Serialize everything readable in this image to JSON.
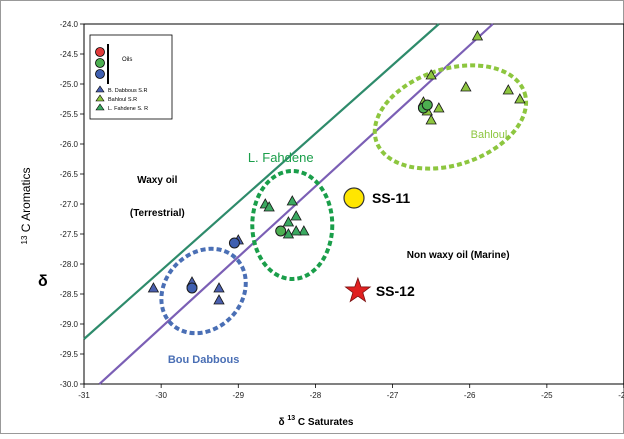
{
  "chart_data": {
    "type": "scatter",
    "xlabel": {
      "prefix": "δ",
      "sup": "13",
      "text": "C Saturates"
    },
    "ylabel": {
      "prefix": "δ",
      "sup": "13",
      "text": "C Aromatics"
    },
    "xlim": [
      -31,
      -24
    ],
    "ylim": [
      -30,
      -24
    ],
    "x_ticks": [
      -31,
      -30,
      -29,
      -28,
      -27,
      -26,
      -25,
      -24
    ],
    "x_tick_labels": [
      "-31",
      "-30",
      "-29",
      "-28",
      "-27",
      "-26",
      "-25",
      "-24"
    ],
    "y_ticks": [
      -24.0,
      -24.5,
      -25.0,
      -25.5,
      -26.0,
      -26.5,
      -27.0,
      -27.5,
      -28.0,
      -28.5,
      -29.0,
      -29.5,
      -30.0
    ],
    "y_tick_labels": [
      "-24.0",
      "-24.5",
      "-25.0",
      "-25.5",
      "-26.0",
      "-26.5",
      "-27.0",
      "-27.5",
      "-28.0",
      "-28.5",
      "-29.0",
      "-29.5",
      "-30.0"
    ],
    "grid": false,
    "legend": {
      "placement": "top-left",
      "oils_label": "Oils",
      "entries": [
        "B. Dabbous S.R",
        "Bahloul S.R",
        "L. Fahdene S. R"
      ]
    },
    "colors": {
      "dabbous": "#4a5fae",
      "bahloul": "#8dc63f",
      "fahdene": "#3aa860",
      "oil_red": "#e03a3a",
      "oil_green": "#4caf50",
      "oil_blue": "#3f5fb0",
      "line_green": "#2e8b6b",
      "line_purple": "#7b5fb5",
      "ellipse_bahloul": "#8dc63f",
      "ellipse_fahdene": "#1a9e4a",
      "ellipse_dabbous": "#4a6fb5",
      "ss11_fill": "#ffe600",
      "ss12_fill": "#e02020",
      "label_bahloul": "#7cba3a",
      "label_fahdene": "#1a9e4a",
      "label_dabbous": "#3f5fb0"
    },
    "series": [
      {
        "name": "B. Dabbous S.R",
        "marker": "triangle",
        "color": "#4a5fae",
        "points": [
          [
            -30.1,
            -28.4
          ],
          [
            -29.6,
            -28.3
          ],
          [
            -29.25,
            -28.4
          ],
          [
            -29.25,
            -28.6
          ],
          [
            -29.0,
            -27.6
          ]
        ]
      },
      {
        "name": "Bahloul S.R",
        "marker": "triangle",
        "color": "#8dc63f",
        "points": [
          [
            -25.9,
            -24.2
          ],
          [
            -26.5,
            -24.85
          ],
          [
            -26.6,
            -25.3
          ],
          [
            -26.55,
            -25.45
          ],
          [
            -26.5,
            -25.6
          ],
          [
            -26.4,
            -25.4
          ],
          [
            -26.05,
            -25.05
          ],
          [
            -25.5,
            -25.1
          ],
          [
            -25.35,
            -25.25
          ]
        ]
      },
      {
        "name": "L. Fahdene S. R",
        "marker": "triangle",
        "color": "#3aa860",
        "points": [
          [
            -28.65,
            -27.0
          ],
          [
            -28.3,
            -26.95
          ],
          [
            -28.25,
            -27.2
          ],
          [
            -28.35,
            -27.3
          ],
          [
            -28.15,
            -27.45
          ],
          [
            -28.25,
            -27.45
          ],
          [
            -28.35,
            -27.5
          ],
          [
            -28.6,
            -27.05
          ]
        ]
      },
      {
        "name": "Oils",
        "marker": "circle",
        "points": [
          {
            "x": -29.6,
            "y": -28.4,
            "color": "#3f5fb0"
          },
          {
            "x": -29.05,
            "y": -27.65,
            "color": "#3f5fb0"
          },
          {
            "x": -28.45,
            "y": -27.45,
            "color": "#4caf50"
          },
          {
            "x": -26.6,
            "y": -25.4,
            "color": "#4caf50"
          },
          {
            "x": -26.55,
            "y": -25.35,
            "color": "#4caf50"
          }
        ]
      }
    ],
    "samples": [
      {
        "label": "SS-11",
        "x": -27.5,
        "y": -26.9,
        "marker": "circle"
      },
      {
        "label": "SS-12",
        "x": -27.45,
        "y": -28.45,
        "marker": "star"
      }
    ],
    "lines": [
      {
        "points": [
          [
            -31,
            -29.25
          ],
          [
            -26.4,
            -24.0
          ]
        ],
        "color": "#2e8b6b"
      },
      {
        "points": [
          [
            -30.8,
            -30.0
          ],
          [
            -25.7,
            -24.0
          ]
        ],
        "color": "#7b5fb5"
      }
    ],
    "ellipses": [
      {
        "label": "Bahloul",
        "center": [
          -26.25,
          -25.55
        ],
        "color": "#8dc63f",
        "label_pos": [
          -25.75,
          -25.9
        ]
      },
      {
        "label": "L. Fahdene",
        "center": [
          -28.3,
          -27.35
        ],
        "color": "#1a9e4a",
        "label_pos": [
          -28.45,
          -26.3
        ]
      },
      {
        "label": "Bou Dabbous",
        "center": [
          -29.45,
          -28.45
        ],
        "color": "#4a6fb5",
        "label_pos": [
          -29.45,
          -29.65
        ]
      }
    ],
    "annotations": [
      {
        "text": "Waxy oil",
        "x": -30.05,
        "y": -26.65
      },
      {
        "text": "(Terrestrial)",
        "x": -30.05,
        "y": -27.2
      },
      {
        "text": "Non waxy oil (Marine)",
        "x": -26.15,
        "y": -27.9
      }
    ]
  }
}
